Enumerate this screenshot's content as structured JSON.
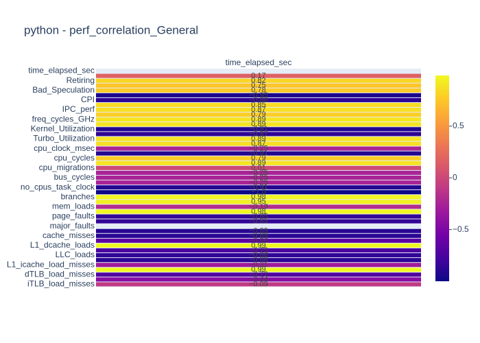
{
  "chart_data": {
    "type": "heatmap",
    "title": "python - perf_correlation_General",
    "x_categories": [
      "time_elapsed_sec"
    ],
    "categories": [
      "time_elapsed_sec",
      null,
      "Retiring",
      null,
      "Bad_Speculation",
      null,
      "CPI",
      null,
      "IPC_perf",
      null,
      "freq_cycles_GHz",
      null,
      "Kernel_Utilization",
      null,
      "Turbo_Utilization",
      null,
      "cpu_clock_msec",
      null,
      "cpu_cycles",
      null,
      "cpu_migrations",
      null,
      "bus_cycles",
      null,
      "no_cpus_task_clock",
      null,
      "branches",
      null,
      "mem_loads",
      null,
      "page_faults",
      null,
      "major_faults",
      null,
      "cache_misses",
      null,
      "L1_dcache_loads",
      null,
      "LLC_loads",
      null,
      "L1_icache_load_misses",
      null,
      "dTLB_load_misses",
      null,
      "iTLB_load_misses"
    ],
    "values": [
      null,
      0.17,
      0.82,
      0.75,
      0.78,
      -0.95,
      -0.88,
      0.85,
      0.87,
      0.79,
      0.89,
      0.89,
      -0.91,
      -0.87,
      0.89,
      0.87,
      -0.25,
      -0.91,
      0.79,
      0.89,
      0.01,
      -0.25,
      -0.25,
      -0.25,
      -0.91,
      -1.0,
      0.98,
      0.95,
      -0.19,
      0.98,
      -0.85,
      -0.85,
      null,
      -0.89,
      -0.89,
      -0.66,
      0.99,
      -0.75,
      -0.86,
      -0.88,
      -0.31,
      0.99,
      -0.72,
      -0.44,
      -0.09
    ],
    "value_labels": [
      null,
      "0.17",
      "0.82",
      "0.75",
      "0.78",
      "−0.95",
      "−0.88",
      "0.85",
      "0.87",
      "0.79",
      "0.89",
      "0.89",
      "−0.91",
      "−0.87",
      "0.89",
      "0.87",
      "−0.25",
      "−0.91",
      "0.79",
      "0.89",
      "0.01",
      "−0.25",
      "−0.25",
      "−0.25",
      "−0.91",
      "−1.0",
      "0.98",
      "0.95",
      "−0.19",
      "0.98",
      "−0.85",
      "−0.85",
      null,
      "−0.89",
      "−0.89",
      "−0.66",
      "0.99",
      "−0.75",
      "−0.86",
      "−0.88",
      "−0.31",
      "0.99",
      "−0.72",
      "−0.44",
      "−0.09"
    ],
    "colorscale": [
      "#0d0887",
      "#46039f",
      "#7201a8",
      "#9c179e",
      "#bd3786",
      "#d8576b",
      "#ed7953",
      "#fb9f3a",
      "#fdca26",
      "#f0f921"
    ],
    "zlim": [
      -1,
      0.99
    ],
    "zticks": [
      {
        "value": -0.5,
        "label": "−0.5"
      },
      0,
      0.5
    ]
  }
}
